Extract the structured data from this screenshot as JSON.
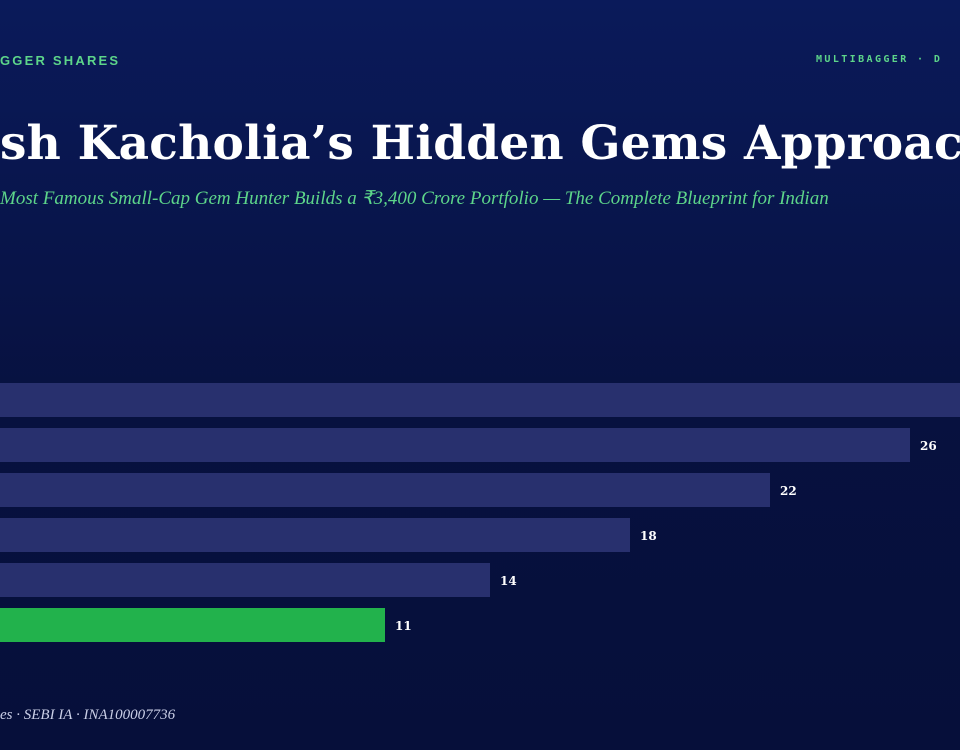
{
  "header": {
    "brand_left": "GGER SHARES",
    "brand_right": "MULTIBAGGER · D",
    "title": "sh Kacholia’s Hidden Gems Approach",
    "subtitle": "Most Famous Small-Cap Gem Hunter Builds a ₹3,400 Crore Portfolio — The Complete Blueprint for Indian"
  },
  "footer": {
    "text": "es · SEBI IA · INA100007736"
  },
  "chart_data": {
    "type": "bar",
    "orientation": "horizontal",
    "categories": [
      "",
      "",
      "",
      "",
      "",
      ""
    ],
    "values": [
      30,
      26,
      22,
      18,
      14,
      11
    ],
    "data_labels": [
      "",
      "26",
      "22",
      "18",
      "14",
      "11"
    ],
    "value_max": 30,
    "colors": {
      "bar": "#28306e",
      "highlight": "#22b24c",
      "label": "#ffffff"
    },
    "highlight_index": 5,
    "legend": "none",
    "grid": false
  }
}
